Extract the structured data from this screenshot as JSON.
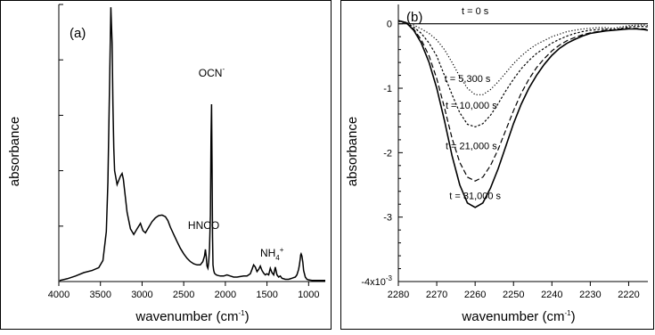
{
  "chart_data": [
    {
      "type": "line",
      "panel_label": "(a)",
      "xlabel": "wavenumber (cm",
      "xlabel_sup": "-1",
      "xlabel_close": ")",
      "ylabel": "absorbance",
      "xlim": [
        4000,
        800
      ],
      "x_reversed": true,
      "ylim": [
        0,
        5.0
      ],
      "yticks": [
        1,
        2,
        3,
        4,
        5
      ],
      "y_tick_labels_shown": false,
      "xticks": [
        4000,
        3500,
        3000,
        2500,
        2000,
        1500,
        1000
      ],
      "xtick_labels": [
        "4000",
        "3500",
        "3000",
        "2500",
        "2000",
        "1500",
        "1000"
      ],
      "grid": false,
      "legend": "none",
      "annotations": [
        {
          "text": "OCN",
          "sup": "-",
          "x": 2165,
          "y": 3.7
        },
        {
          "text": "HNCO",
          "x": 2260,
          "y": 0.95
        },
        {
          "text": "NH",
          "sub": "4",
          "sup": "+",
          "x": 1440,
          "y": 0.45
        }
      ],
      "series": [
        {
          "x": [
            3990,
            3900,
            3800,
            3700,
            3600,
            3520,
            3470,
            3430,
            3410,
            3390,
            3375,
            3360,
            3350,
            3340,
            3330,
            3300,
            3260,
            3240,
            3225,
            3210,
            3180,
            3140,
            3100,
            3060,
            3020,
            2990,
            2960,
            2920,
            2880,
            2840,
            2800,
            2760,
            2720,
            2690,
            2660,
            2620,
            2580,
            2540,
            2500,
            2460,
            2420,
            2380,
            2340,
            2300,
            2270,
            2250,
            2240,
            2230,
            2220,
            2210,
            2200,
            2190,
            2180,
            2172,
            2166,
            2160,
            2154,
            2148,
            2140,
            2130,
            2110,
            2090,
            2060,
            2020,
            1980,
            1940,
            1900,
            1860,
            1820,
            1780,
            1740,
            1700,
            1680,
            1660,
            1640,
            1620,
            1600,
            1580,
            1560,
            1540,
            1520,
            1500,
            1480,
            1460,
            1440,
            1420,
            1400,
            1380,
            1360,
            1340,
            1320,
            1300,
            1280,
            1260,
            1240,
            1220,
            1200,
            1180,
            1160,
            1140,
            1120,
            1110,
            1100,
            1095,
            1090,
            1080,
            1070,
            1060,
            1040,
            1020,
            1000,
            960,
            920,
            880,
            840,
            800
          ],
          "y": [
            0.02,
            0.05,
            0.1,
            0.16,
            0.2,
            0.25,
            0.38,
            0.9,
            1.8,
            3.6,
            4.95,
            4.3,
            3.2,
            2.4,
            2.0,
            1.75,
            1.9,
            1.95,
            1.85,
            1.65,
            1.25,
            0.95,
            0.85,
            0.95,
            1.05,
            0.92,
            0.88,
            0.98,
            1.08,
            1.15,
            1.19,
            1.2,
            1.17,
            1.1,
            0.98,
            0.85,
            0.72,
            0.6,
            0.5,
            0.42,
            0.36,
            0.32,
            0.3,
            0.3,
            0.36,
            0.46,
            0.58,
            0.45,
            0.28,
            0.24,
            0.35,
            0.6,
            1.2,
            2.6,
            3.2,
            2.2,
            0.8,
            0.3,
            0.2,
            0.15,
            0.12,
            0.11,
            0.1,
            0.1,
            0.12,
            0.1,
            0.08,
            0.08,
            0.09,
            0.1,
            0.1,
            0.14,
            0.22,
            0.3,
            0.26,
            0.18,
            0.22,
            0.28,
            0.2,
            0.15,
            0.12,
            0.14,
            0.12,
            0.24,
            0.16,
            0.12,
            0.26,
            0.12,
            0.08,
            0.1,
            0.06,
            0.05,
            0.04,
            0.04,
            0.04,
            0.05,
            0.06,
            0.07,
            0.08,
            0.12,
            0.22,
            0.3,
            0.42,
            0.48,
            0.5,
            0.46,
            0.35,
            0.2,
            0.08,
            0.04,
            0.03,
            0.02,
            0.02,
            0.02,
            0.02,
            0.02
          ]
        }
      ]
    },
    {
      "type": "line",
      "panel_label": "(b)",
      "xlabel": "wavenumber (cm",
      "xlabel_sup": "-1",
      "xlabel_close": ")",
      "ylabel": "absorbance",
      "xlim": [
        2280,
        2215
      ],
      "x_reversed": true,
      "ylim": [
        -4,
        0.3
      ],
      "y_scale_label": "x10",
      "y_scale_exp": "-3",
      "xticks": [
        2280,
        2270,
        2260,
        2250,
        2240,
        2230,
        2220
      ],
      "xtick_labels": [
        "2280",
        "2270",
        "2260",
        "2250",
        "2240",
        "2230",
        "2220"
      ],
      "yticks": [
        0,
        -1,
        -2,
        -3,
        -4
      ],
      "ytick_labels": [
        "0",
        "-1",
        "-2",
        "-3",
        "-4"
      ],
      "grid": false,
      "legend": "none",
      "series": [
        {
          "name": "t = 0 s",
          "label_pos": [
            2260,
            0.15
          ],
          "dash": "",
          "x": [
            2280,
            2270,
            2260,
            2250,
            2240,
            2230,
            2220,
            2215
          ],
          "y": [
            0,
            0,
            0,
            0,
            0,
            0,
            0,
            0
          ]
        },
        {
          "name": "t = 5,300 s",
          "label_pos": [
            2262,
            -0.9
          ],
          "dash": "1.2,2.2",
          "x": [
            2280,
            2278,
            2276,
            2274,
            2272,
            2270,
            2268,
            2266,
            2264,
            2262,
            2260,
            2258,
            2256,
            2254,
            2252,
            2250,
            2248,
            2246,
            2244,
            2242,
            2240,
            2238,
            2236,
            2234,
            2232,
            2230,
            2228,
            2226,
            2224,
            2222,
            2220,
            2218,
            2216,
            2215
          ],
          "y": [
            0.04,
            0.02,
            -0.02,
            -0.08,
            -0.15,
            -0.25,
            -0.4,
            -0.6,
            -0.82,
            -1.0,
            -1.1,
            -1.1,
            -1.02,
            -0.9,
            -0.76,
            -0.62,
            -0.5,
            -0.4,
            -0.32,
            -0.26,
            -0.2,
            -0.16,
            -0.12,
            -0.1,
            -0.08,
            -0.07,
            -0.06,
            -0.06,
            -0.07,
            -0.05,
            -0.03,
            -0.02,
            -0.02,
            -0.03
          ]
        },
        {
          "name": "t = 10,000 s",
          "label_pos": [
            2261,
            -1.32
          ],
          "dash": "2.5,2",
          "x": [
            2280,
            2278,
            2276,
            2274,
            2272,
            2270,
            2268,
            2266,
            2264,
            2262,
            2260,
            2258,
            2256,
            2254,
            2252,
            2250,
            2248,
            2246,
            2244,
            2242,
            2240,
            2238,
            2236,
            2234,
            2232,
            2230,
            2228,
            2226,
            2224,
            2222,
            2220,
            2218,
            2216,
            2215
          ],
          "y": [
            0.04,
            0.01,
            -0.05,
            -0.15,
            -0.3,
            -0.5,
            -0.8,
            -1.1,
            -1.38,
            -1.56,
            -1.6,
            -1.55,
            -1.42,
            -1.24,
            -1.04,
            -0.86,
            -0.7,
            -0.57,
            -0.46,
            -0.38,
            -0.3,
            -0.24,
            -0.19,
            -0.15,
            -0.12,
            -0.1,
            -0.09,
            -0.08,
            -0.09,
            -0.07,
            -0.05,
            -0.04,
            -0.04,
            -0.05
          ]
        },
        {
          "name": "t = 21,000 s",
          "label_pos": [
            2261,
            -1.95
          ],
          "dash": "6,3",
          "x": [
            2280,
            2278,
            2276,
            2274,
            2272,
            2270,
            2268,
            2266,
            2264,
            2262,
            2260,
            2258,
            2256,
            2254,
            2252,
            2250,
            2248,
            2246,
            2244,
            2242,
            2240,
            2238,
            2236,
            2234,
            2232,
            2230,
            2228,
            2226,
            2224,
            2222,
            2220,
            2218,
            2216,
            2215
          ],
          "y": [
            0.05,
            0.02,
            -0.08,
            -0.25,
            -0.5,
            -0.85,
            -1.3,
            -1.78,
            -2.15,
            -2.38,
            -2.44,
            -2.38,
            -2.2,
            -1.95,
            -1.65,
            -1.35,
            -1.08,
            -0.86,
            -0.68,
            -0.54,
            -0.42,
            -0.33,
            -0.26,
            -0.21,
            -0.17,
            -0.14,
            -0.12,
            -0.1,
            -0.1,
            -0.08,
            -0.07,
            -0.07,
            -0.08,
            -0.09
          ]
        },
        {
          "name": "t = 31,000 s",
          "label_pos": [
            2260,
            -2.72
          ],
          "dash": "",
          "x": [
            2280,
            2278,
            2276,
            2274,
            2272,
            2270,
            2268,
            2266,
            2264,
            2262,
            2260,
            2258,
            2256,
            2254,
            2252,
            2250,
            2248,
            2246,
            2244,
            2242,
            2240,
            2238,
            2236,
            2234,
            2232,
            2230,
            2228,
            2226,
            2224,
            2222,
            2220,
            2218,
            2216,
            2215
          ],
          "y": [
            0.05,
            0.02,
            -0.1,
            -0.3,
            -0.6,
            -1.0,
            -1.5,
            -2.05,
            -2.5,
            -2.78,
            -2.85,
            -2.78,
            -2.55,
            -2.25,
            -1.9,
            -1.55,
            -1.25,
            -1.0,
            -0.8,
            -0.63,
            -0.49,
            -0.38,
            -0.3,
            -0.24,
            -0.19,
            -0.15,
            -0.13,
            -0.11,
            -0.1,
            -0.09,
            -0.08,
            -0.08,
            -0.09,
            -0.1
          ]
        }
      ]
    }
  ]
}
